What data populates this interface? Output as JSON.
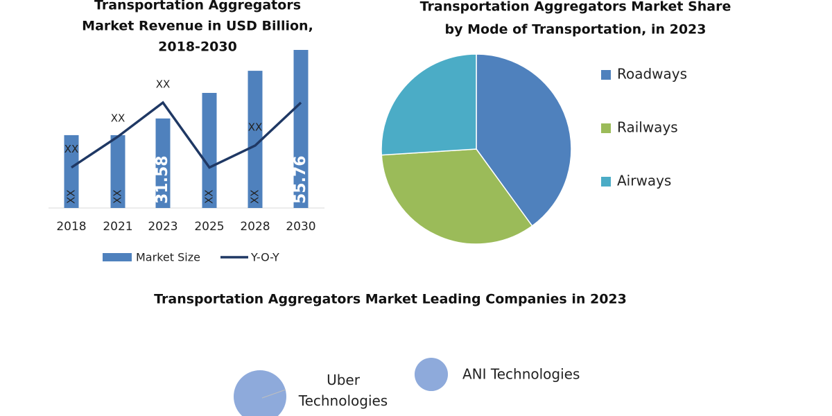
{
  "chart_data": [
    {
      "type": "bar",
      "title": [
        "Transportation Aggregators",
        "Market Revenue in USD Billion,",
        "2018-2030"
      ],
      "categories": [
        "2018",
        "2021",
        "2023",
        "2025",
        "2028",
        "2030"
      ],
      "series": [
        {
          "name": "Market Size",
          "type": "bar",
          "color": "#4f81bd",
          "values": [
            25.7,
            25.7,
            31.58,
            40.6,
            48.4,
            55.76
          ],
          "value_labels": [
            "XX",
            "XX",
            "31.58",
            "XX",
            "XX",
            "55.76"
          ]
        },
        {
          "name": "Y-O-Y",
          "type": "line",
          "color": "#1f3864",
          "values": [
            5,
            8.8,
            13,
            5,
            7.7,
            13
          ],
          "value_labels": [
            "XX",
            "XX",
            "XX",
            null,
            "XX",
            null
          ]
        }
      ]
    },
    {
      "type": "pie",
      "title": [
        "Transportation Aggregators Market Share",
        "by Mode of Transportation, in 2023"
      ],
      "categories": [
        "Roadways",
        "Railways",
        "Airways"
      ],
      "values": [
        40,
        34,
        26
      ],
      "colors": [
        "#4f81bd",
        "#9bbb59",
        "#4bacc6"
      ]
    },
    {
      "type": "bubble",
      "title": "Transportation Aggregators Market Leading Companies in 2023",
      "categories": [
        "Uber Technologies",
        "ANI Technologies"
      ],
      "values": [
        100,
        40
      ],
      "color": "#8eaadb"
    }
  ]
}
